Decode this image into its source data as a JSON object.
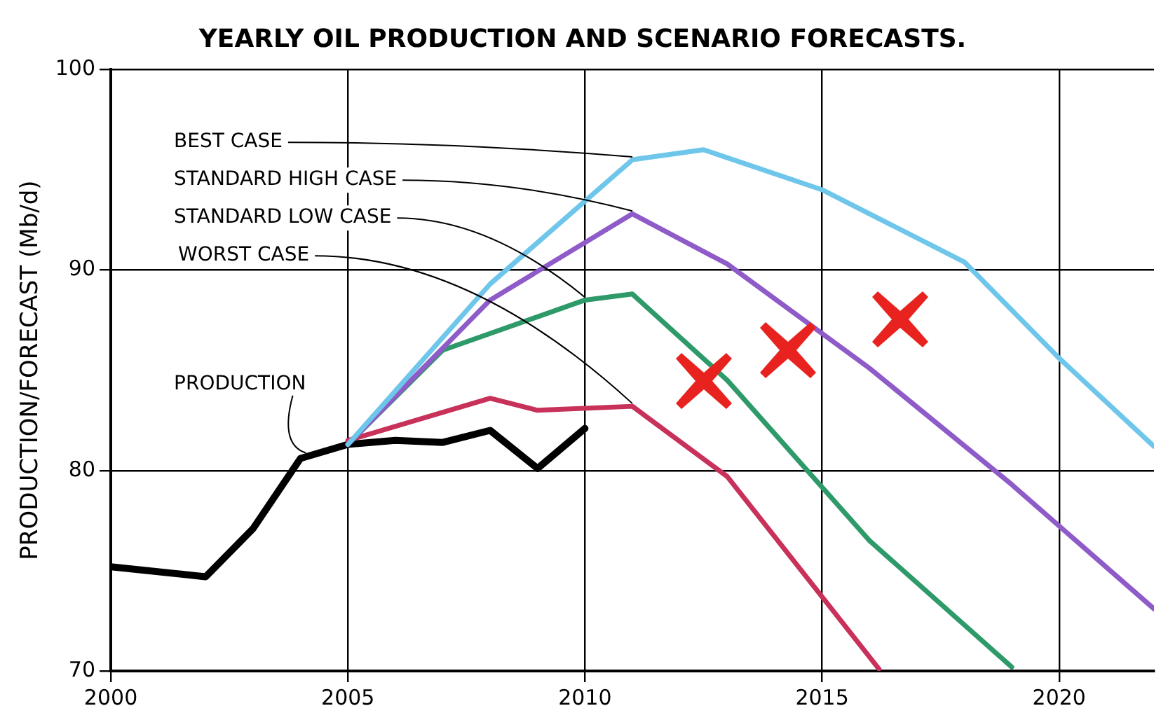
{
  "chart_data": {
    "type": "line",
    "title": "YEARLY OIL PRODUCTION AND SCENARIO FORECASTS.",
    "ylabel": "PRODUCTION/FORECAST (Mb/d)",
    "xlim": [
      2000,
      2022
    ],
    "xticks": [
      2000,
      2005,
      2010,
      2015,
      2020
    ],
    "ylim": [
      70,
      100
    ],
    "yticks": [
      70,
      80,
      90,
      100
    ],
    "grid": true,
    "legend": false,
    "marker": "none",
    "line_style": "solid",
    "series": [
      {
        "name": "BEST CASE",
        "color": "#6ec6ea",
        "x": [
          2005,
          2008,
          2011,
          2012.5,
          2015,
          2018,
          2020,
          2022
        ],
        "values": [
          81.3,
          89.3,
          95.5,
          96,
          94,
          90.4,
          85.6,
          81.2
        ]
      },
      {
        "name": "STANDARD HIGH CASE",
        "color": "#8e5bc8",
        "x": [
          2005,
          2008,
          2011,
          2013,
          2016,
          2019,
          2022
        ],
        "values": [
          81.3,
          88.5,
          92.8,
          90.3,
          85.1,
          79.3,
          73.1
        ]
      },
      {
        "name": "STANDARD LOW CASE",
        "color": "#2e9a6a",
        "x": [
          2005,
          2007,
          2010,
          2011,
          2013,
          2016,
          2019
        ],
        "values": [
          81.3,
          86,
          88.5,
          88.8,
          84.5,
          76.5,
          70.2
        ]
      },
      {
        "name": "WORST CASE",
        "color": "#c8325a",
        "x": [
          2005,
          2008,
          2009,
          2011,
          2013,
          2016.2
        ],
        "values": [
          81.5,
          83.6,
          83,
          83.2,
          79.7,
          70.1
        ]
      },
      {
        "name": "PRODUCTION",
        "color": "#000000",
        "x": [
          2000,
          2002,
          2003,
          2004,
          2005,
          2006,
          2007,
          2008,
          2009,
          2010
        ],
        "values": [
          75.2,
          74.7,
          77.1,
          80.6,
          81.3,
          81.5,
          81.4,
          82,
          80.1,
          82.1
        ]
      }
    ]
  }
}
